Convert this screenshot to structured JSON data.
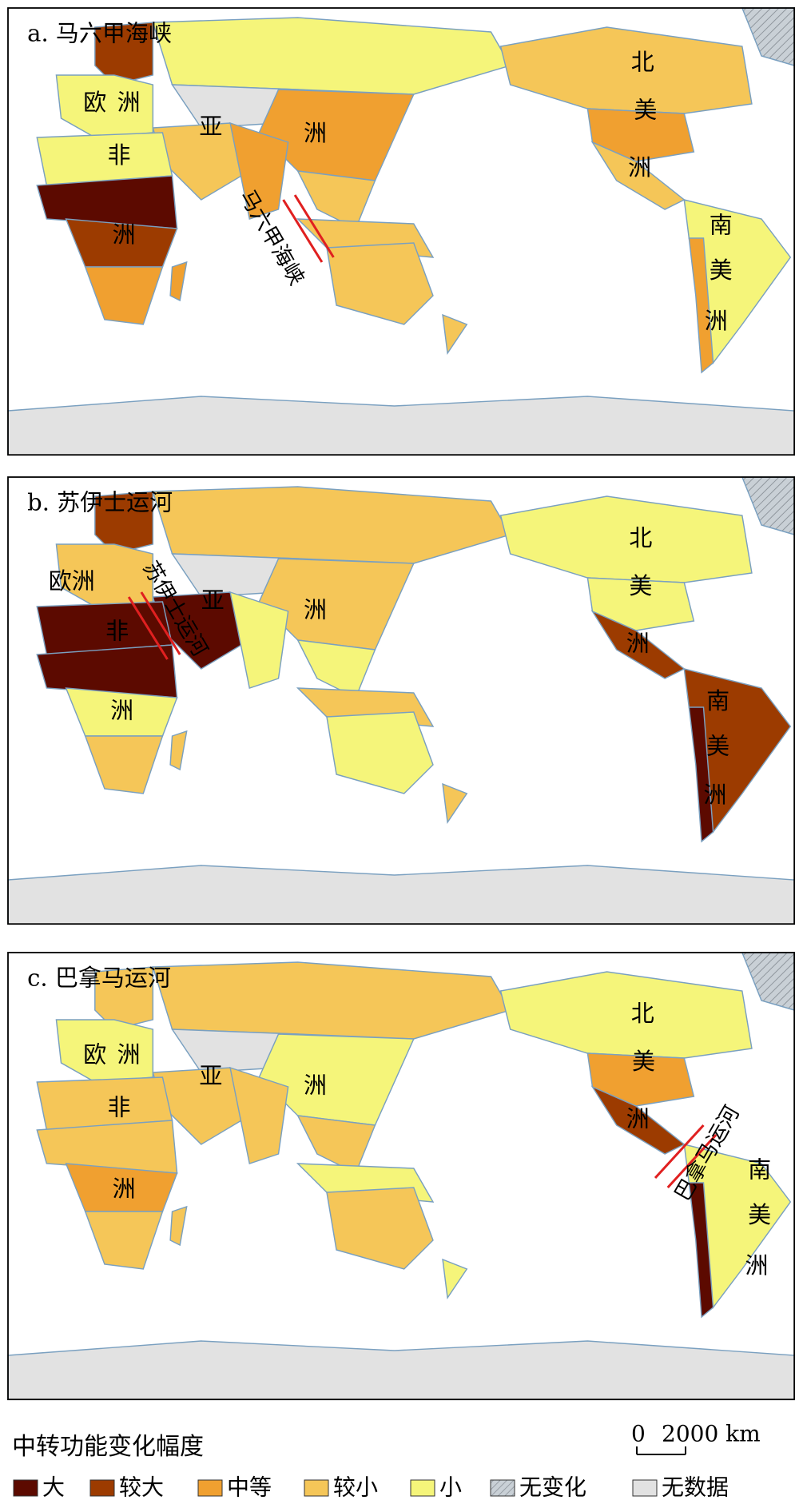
{
  "panels": [
    {
      "title": "a. 马六甲海峡",
      "strait": "马六甲海峡",
      "labels": [
        "欧",
        "洲",
        "非",
        "洲",
        "亚",
        "洲",
        "北",
        "美",
        "洲",
        "南",
        "美",
        "洲"
      ],
      "region_levels": [
        5,
        1,
        4,
        4,
        6,
        2,
        3,
        2,
        3,
        3,
        4,
        0,
        1,
        2,
        2,
        3,
        3,
        3,
        2,
        3,
        4,
        2,
        6
      ]
    },
    {
      "title": "b. 苏伊士运河",
      "strait": "苏伊士运河",
      "labels": [
        "欧洲",
        "非",
        "洲",
        "亚",
        "洲",
        "北",
        "美",
        "洲",
        "南",
        "美",
        "洲"
      ],
      "region_levels": [
        5,
        1,
        3,
        3,
        6,
        3,
        0,
        4,
        4,
        3,
        0,
        0,
        4,
        3,
        3,
        4,
        3,
        4,
        4,
        1,
        1,
        0,
        6
      ]
    },
    {
      "title": "c. 巴拿马运河",
      "strait": "巴拿马运河",
      "labels": [
        "欧",
        "洲",
        "非",
        "洲",
        "亚",
        "洲",
        "北",
        "美",
        "洲",
        "南",
        "美",
        "洲"
      ],
      "region_levels": [
        5,
        3,
        4,
        3,
        6,
        4,
        3,
        3,
        3,
        4,
        3,
        3,
        2,
        3,
        3,
        3,
        4,
        4,
        2,
        1,
        4,
        0,
        6
      ]
    }
  ],
  "legend": {
    "title": "中转功能变化幅度",
    "items": [
      {
        "label": "大",
        "color": "#5c0a00"
      },
      {
        "label": "较大",
        "color": "#9c3b00"
      },
      {
        "label": "中等",
        "color": "#f0a030"
      },
      {
        "label": "较小",
        "color": "#f5c658"
      },
      {
        "label": "小",
        "color": "#f5f57a"
      },
      {
        "label": "无变化",
        "color": "#c9d0d6",
        "hatch": true
      },
      {
        "label": "无数据",
        "color": "#e2e2e2"
      }
    ]
  },
  "scale_bar": {
    "start": "0",
    "end": "2000 km"
  }
}
